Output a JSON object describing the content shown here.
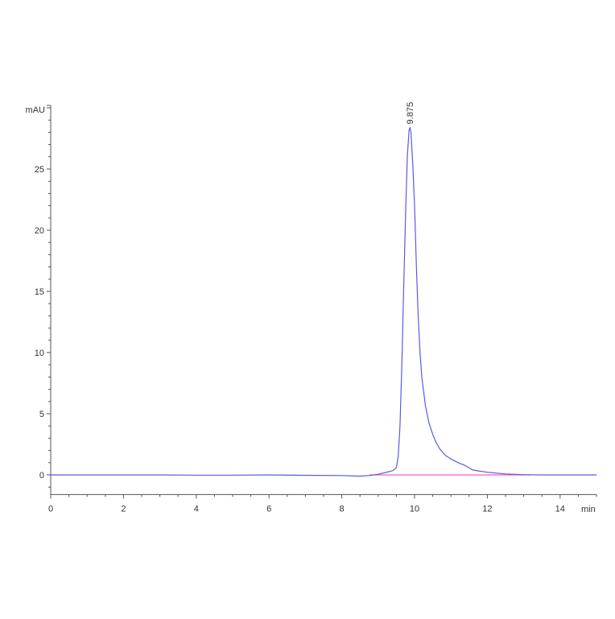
{
  "chart_data": {
    "type": "line",
    "title": "",
    "xlabel": "min",
    "ylabel": "mAU",
    "xlim": [
      0,
      15
    ],
    "ylim": [
      -1.6,
      30.2
    ],
    "x_ticks": [
      0,
      2,
      4,
      6,
      8,
      10,
      12,
      14
    ],
    "y_ticks": [
      0,
      5,
      10,
      15,
      20,
      25
    ],
    "grid": false,
    "colors": {
      "signal": "#5a5ae6",
      "baseline": "#ff55cc",
      "axis": "#555555"
    },
    "peak_annotations": [
      {
        "x": 9.875,
        "y": 28.4,
        "label": "9.875"
      }
    ],
    "baseline_segment": {
      "x": [
        8.75,
        13.2
      ],
      "y": [
        0,
        0
      ]
    },
    "series": [
      {
        "x": [
          0,
          1,
          2,
          3,
          4,
          5,
          6,
          7,
          8,
          8.5,
          8.75,
          9.0,
          9.2,
          9.4,
          9.5,
          9.55,
          9.6,
          9.65,
          9.7,
          9.75,
          9.8,
          9.85,
          9.875,
          9.9,
          9.95,
          10.0,
          10.05,
          10.1,
          10.15,
          10.2,
          10.3,
          10.4,
          10.5,
          10.6,
          10.7,
          10.85,
          11.0,
          11.2,
          11.4,
          11.6,
          11.8,
          12.0,
          12.5,
          13.0,
          13.5,
          14.0,
          15.0
        ],
        "y": [
          0,
          0,
          0,
          0,
          -0.02,
          -0.02,
          0,
          -0.03,
          -0.05,
          -0.1,
          -0.05,
          0.05,
          0.2,
          0.35,
          0.6,
          1.5,
          4,
          9,
          15,
          21,
          26,
          28.2,
          28.4,
          28,
          25.5,
          22,
          17,
          13,
          10,
          8,
          5.6,
          4.2,
          3.3,
          2.6,
          2.1,
          1.6,
          1.3,
          1.0,
          0.75,
          0.4,
          0.3,
          0.22,
          0.08,
          0.02,
          0,
          0,
          0
        ]
      }
    ]
  }
}
